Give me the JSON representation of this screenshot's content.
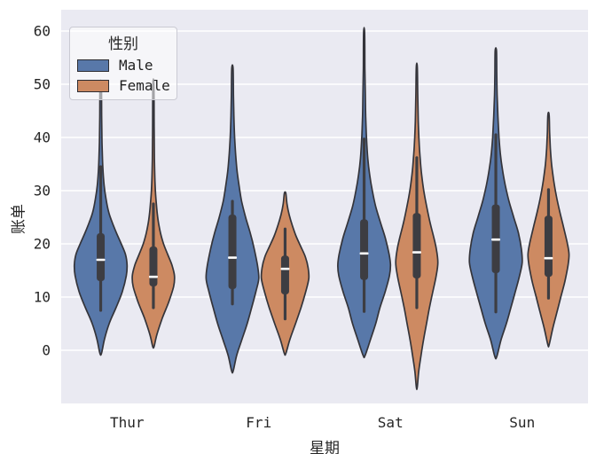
{
  "figure": {
    "background": "#ffffff",
    "plot_background": "#eaeaf2",
    "grid_color": "#ffffff",
    "violin_edge_color": "#34343a",
    "inner_box_color": "#3d3d42",
    "median_color": "#ffffff",
    "tick_text_color": "#262626"
  },
  "chart_data": {
    "type": "violin",
    "title": "",
    "xlabel": "星期",
    "ylabel": "账单",
    "categories": [
      "Thur",
      "Fri",
      "Sat",
      "Sun"
    ],
    "y_ticks": [
      0,
      10,
      20,
      30,
      40,
      50,
      60
    ],
    "ylim": [
      -10,
      64.2
    ],
    "grid": true,
    "legend": {
      "title": "性别",
      "position": "upper left",
      "entries": [
        {
          "label": "Male",
          "color": "#5878a9"
        },
        {
          "label": "Female",
          "color": "#cd8a62"
        }
      ]
    },
    "violins": [
      {
        "day": "Thur",
        "sex": "Male",
        "color": "#5878a9",
        "width_scale": 1.0,
        "median": 17.0,
        "q1": 13.0,
        "q3": 22.0,
        "whisker_low": 7.5,
        "whisker_high": 34.5,
        "kde_min": -0.6,
        "kde_max": 50,
        "kde": [
          [
            -0.6,
            0.03
          ],
          [
            2,
            0.14
          ],
          [
            5,
            0.32
          ],
          [
            8,
            0.58
          ],
          [
            11,
            0.82
          ],
          [
            14,
            0.97
          ],
          [
            16,
            1.0
          ],
          [
            18,
            0.94
          ],
          [
            20,
            0.78
          ],
          [
            22,
            0.6
          ],
          [
            24,
            0.44
          ],
          [
            26,
            0.3
          ],
          [
            28.5,
            0.2
          ],
          [
            31,
            0.13
          ],
          [
            34.5,
            0.08
          ],
          [
            39,
            0.05
          ],
          [
            44,
            0.035
          ],
          [
            50,
            0.025
          ]
        ]
      },
      {
        "day": "Thur",
        "sex": "Female",
        "color": "#cd8a62",
        "width_scale": 0.8,
        "median": 13.8,
        "q1": 12.0,
        "q3": 19.5,
        "whisker_low": 8.0,
        "whisker_high": 27.5,
        "kde_min": 0.7,
        "kde_max": 50,
        "kde": [
          [
            0.7,
            0.03
          ],
          [
            3,
            0.17
          ],
          [
            6,
            0.42
          ],
          [
            9,
            0.72
          ],
          [
            12,
            0.96
          ],
          [
            14,
            1.0
          ],
          [
            16,
            0.88
          ],
          [
            18,
            0.68
          ],
          [
            20,
            0.48
          ],
          [
            22,
            0.34
          ],
          [
            24.5,
            0.22
          ],
          [
            27.5,
            0.14
          ],
          [
            31,
            0.08
          ],
          [
            36,
            0.05
          ],
          [
            42,
            0.035
          ],
          [
            50,
            0.025
          ]
        ]
      },
      {
        "day": "Fri",
        "sex": "Male",
        "color": "#5878a9",
        "width_scale": 1.0,
        "median": 17.4,
        "q1": 11.5,
        "q3": 25.5,
        "whisker_low": 8.7,
        "whisker_high": 28.0,
        "kde_min": -3.9,
        "kde_max": 53,
        "kde": [
          [
            -3.9,
            0.03
          ],
          [
            -1,
            0.16
          ],
          [
            2,
            0.36
          ],
          [
            5,
            0.56
          ],
          [
            8,
            0.73
          ],
          [
            11,
            0.89
          ],
          [
            13.5,
            1.0
          ],
          [
            16,
            0.95
          ],
          [
            19,
            0.83
          ],
          [
            22,
            0.68
          ],
          [
            25,
            0.5
          ],
          [
            28,
            0.35
          ],
          [
            31,
            0.25
          ],
          [
            34,
            0.17
          ],
          [
            37,
            0.12
          ],
          [
            40.5,
            0.08
          ],
          [
            44,
            0.055
          ],
          [
            48,
            0.04
          ],
          [
            53,
            0.025
          ]
        ]
      },
      {
        "day": "Fri",
        "sex": "Female",
        "color": "#cd8a62",
        "width_scale": 0.9,
        "median": 15.3,
        "q1": 10.5,
        "q3": 17.8,
        "whisker_low": 5.9,
        "whisker_high": 22.8,
        "kde_min": -0.6,
        "kde_max": 29.5,
        "kde": [
          [
            -0.6,
            0.03
          ],
          [
            2,
            0.2
          ],
          [
            5,
            0.44
          ],
          [
            8,
            0.67
          ],
          [
            11,
            0.87
          ],
          [
            13.5,
            1.0
          ],
          [
            15.5,
            0.97
          ],
          [
            17.5,
            0.86
          ],
          [
            19.5,
            0.66
          ],
          [
            21.5,
            0.46
          ],
          [
            23.5,
            0.3
          ],
          [
            25.5,
            0.17
          ],
          [
            27.5,
            0.08
          ],
          [
            29.5,
            0.03
          ]
        ]
      },
      {
        "day": "Sat",
        "sex": "Male",
        "color": "#5878a9",
        "width_scale": 1.0,
        "median": 18.2,
        "q1": 13.2,
        "q3": 24.6,
        "whisker_low": 7.3,
        "whisker_high": 39.7,
        "kde_min": -1.0,
        "kde_max": 59.8,
        "kde": [
          [
            -1,
            0.035
          ],
          [
            2,
            0.24
          ],
          [
            5,
            0.44
          ],
          [
            8,
            0.6
          ],
          [
            11,
            0.8
          ],
          [
            14,
            0.96
          ],
          [
            16,
            1.0
          ],
          [
            18,
            0.95
          ],
          [
            21,
            0.81
          ],
          [
            24,
            0.62
          ],
          [
            27,
            0.44
          ],
          [
            30,
            0.31
          ],
          [
            33,
            0.21
          ],
          [
            36,
            0.14
          ],
          [
            40,
            0.09
          ],
          [
            44,
            0.06
          ],
          [
            48,
            0.045
          ],
          [
            53,
            0.03
          ],
          [
            59.8,
            0.02
          ]
        ]
      },
      {
        "day": "Sat",
        "sex": "Female",
        "color": "#cd8a62",
        "width_scale": 0.8,
        "median": 18.4,
        "q1": 13.5,
        "q3": 25.8,
        "whisker_low": 8.0,
        "whisker_high": 36.2,
        "kde_min": -7.0,
        "kde_max": 53.3,
        "kde": [
          [
            -7,
            0.02
          ],
          [
            -4,
            0.09
          ],
          [
            -1,
            0.2
          ],
          [
            2,
            0.32
          ],
          [
            5,
            0.46
          ],
          [
            8,
            0.6
          ],
          [
            11,
            0.76
          ],
          [
            14,
            0.92
          ],
          [
            16.5,
            1.0
          ],
          [
            19,
            0.93
          ],
          [
            21,
            0.82
          ],
          [
            24,
            0.63
          ],
          [
            27,
            0.47
          ],
          [
            30,
            0.33
          ],
          [
            33,
            0.23
          ],
          [
            36,
            0.16
          ],
          [
            39,
            0.11
          ],
          [
            43,
            0.07
          ],
          [
            48,
            0.045
          ],
          [
            53.3,
            0.025
          ]
        ]
      },
      {
        "day": "Sun",
        "sex": "Male",
        "color": "#5878a9",
        "width_scale": 1.0,
        "median": 20.8,
        "q1": 14.5,
        "q3": 27.4,
        "whisker_low": 7.2,
        "whisker_high": 40.5,
        "kde_min": -1.2,
        "kde_max": 56.3,
        "kde": [
          [
            -1.2,
            0.035
          ],
          [
            2,
            0.2
          ],
          [
            5,
            0.4
          ],
          [
            8,
            0.57
          ],
          [
            11,
            0.74
          ],
          [
            14,
            0.9
          ],
          [
            16.5,
            1.0
          ],
          [
            19,
            0.97
          ],
          [
            22,
            0.86
          ],
          [
            25,
            0.68
          ],
          [
            28,
            0.5
          ],
          [
            31,
            0.36
          ],
          [
            34,
            0.25
          ],
          [
            37,
            0.17
          ],
          [
            40,
            0.12
          ],
          [
            44,
            0.08
          ],
          [
            48,
            0.05
          ],
          [
            52,
            0.035
          ],
          [
            56.3,
            0.025
          ]
        ]
      },
      {
        "day": "Sun",
        "sex": "Female",
        "color": "#cd8a62",
        "width_scale": 0.78,
        "median": 17.3,
        "q1": 13.8,
        "q3": 25.3,
        "whisker_low": 9.8,
        "whisker_high": 30.2,
        "kde_min": 1.0,
        "kde_max": 44.3,
        "kde": [
          [
            1,
            0.03
          ],
          [
            4,
            0.2
          ],
          [
            7,
            0.4
          ],
          [
            10,
            0.6
          ],
          [
            13,
            0.8
          ],
          [
            16,
            0.95
          ],
          [
            18,
            1.0
          ],
          [
            20,
            0.92
          ],
          [
            23,
            0.74
          ],
          [
            26,
            0.55
          ],
          [
            29,
            0.38
          ],
          [
            32,
            0.25
          ],
          [
            35,
            0.15
          ],
          [
            38,
            0.09
          ],
          [
            41,
            0.055
          ],
          [
            44.3,
            0.03
          ]
        ]
      }
    ]
  }
}
